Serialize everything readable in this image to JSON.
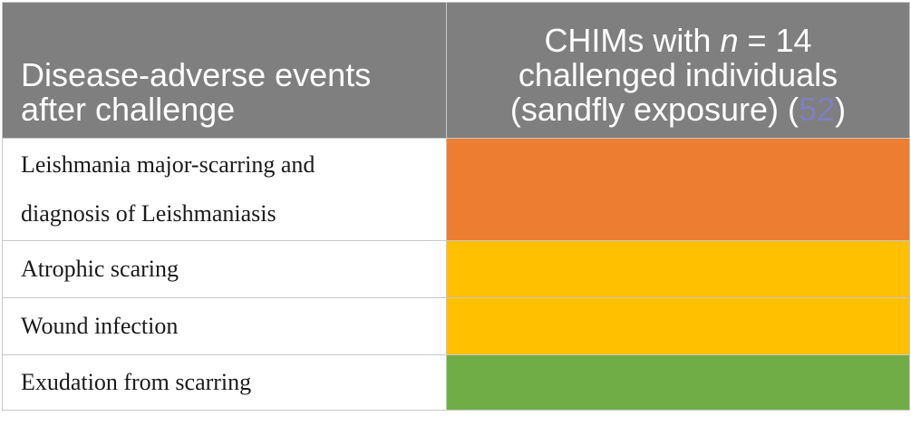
{
  "table": {
    "header": {
      "col1_line1": "Disease-adverse events",
      "col1_line2": "after challenge",
      "col2_line1_prefix": "CHIMs with ",
      "col2_line1_n": "n",
      "col2_line1_suffix": " = 14",
      "col2_line2": "challenged individuals",
      "col2_line3_prefix": "(sandfly exposure) (",
      "col2_line3_ref": "52",
      "col2_line3_suffix": ")"
    },
    "rows": [
      {
        "label_line1": "Leishmania major-scarring and",
        "label_line2": "diagnosis of Leishmaniasis",
        "color": "#ed7d31"
      },
      {
        "label": "Atrophic scaring",
        "color": "#ffc000"
      },
      {
        "label": "Wound infection",
        "color": "#ffc000"
      },
      {
        "label": "Exudation from scarring",
        "color": "#70ad47"
      }
    ],
    "header_bg": "#7f7f7f",
    "ref_color": "#7d7fc0"
  }
}
